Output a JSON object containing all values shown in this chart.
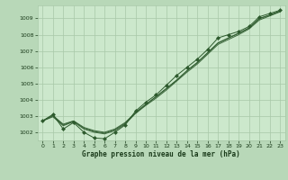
{
  "x": [
    0,
    1,
    2,
    3,
    4,
    5,
    6,
    7,
    8,
    9,
    10,
    11,
    12,
    13,
    14,
    15,
    16,
    17,
    18,
    19,
    20,
    21,
    22,
    23
  ],
  "main_line": [
    1002.7,
    1003.1,
    1002.2,
    1002.6,
    1002.0,
    1001.65,
    1001.6,
    1002.0,
    1002.45,
    1003.3,
    1003.85,
    1004.3,
    1004.9,
    1005.5,
    1006.0,
    1006.5,
    1007.1,
    1007.8,
    1008.0,
    1008.2,
    1008.5,
    1009.1,
    1009.3,
    1009.5
  ],
  "smooth1": [
    1002.7,
    1003.0,
    1002.5,
    1002.7,
    1002.3,
    1002.1,
    1002.0,
    1002.2,
    1002.6,
    1003.2,
    1003.7,
    1004.2,
    1004.7,
    1005.2,
    1005.8,
    1006.3,
    1006.9,
    1007.5,
    1007.8,
    1008.1,
    1008.4,
    1009.0,
    1009.2,
    1009.45
  ],
  "smooth2": [
    1002.7,
    1002.95,
    1002.4,
    1002.65,
    1002.2,
    1002.0,
    1001.9,
    1002.1,
    1002.5,
    1003.15,
    1003.65,
    1004.1,
    1004.6,
    1005.15,
    1005.7,
    1006.2,
    1006.8,
    1007.4,
    1007.7,
    1008.0,
    1008.35,
    1008.9,
    1009.15,
    1009.4
  ],
  "smooth3": [
    1002.7,
    1003.05,
    1002.45,
    1002.68,
    1002.25,
    1002.05,
    1001.95,
    1002.15,
    1002.55,
    1003.22,
    1003.72,
    1004.18,
    1004.68,
    1005.22,
    1005.78,
    1006.28,
    1006.88,
    1007.48,
    1007.78,
    1008.08,
    1008.42,
    1008.98,
    1009.2,
    1009.45
  ],
  "bg_color": "#cce8cc",
  "fig_bg_color": "#b8d8b8",
  "line_color": "#2d5a2d",
  "grid_color": "#a8c8a8",
  "text_color": "#1a3a1a",
  "xlabel": "Graphe pression niveau de la mer (hPa)",
  "ylim": [
    1001.5,
    1009.8
  ],
  "xlim": [
    -0.5,
    23.5
  ],
  "yticks": [
    1002,
    1003,
    1004,
    1005,
    1006,
    1007,
    1008,
    1009
  ],
  "xticks": [
    0,
    1,
    2,
    3,
    4,
    5,
    6,
    7,
    8,
    9,
    10,
    11,
    12,
    13,
    14,
    15,
    16,
    17,
    18,
    19,
    20,
    21,
    22,
    23
  ]
}
